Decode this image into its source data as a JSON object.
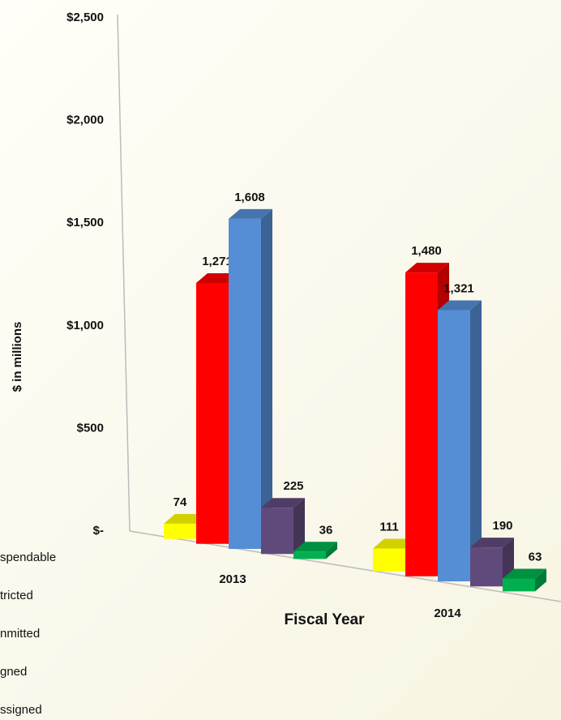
{
  "chart_data": {
    "type": "bar3d",
    "y_label": "$ in millions",
    "x_label": "Fiscal Year",
    "categories": [
      "2013",
      "2014"
    ],
    "series": [
      {
        "name": "spendable",
        "color": "#ffff00",
        "values": [
          74,
          111
        ]
      },
      {
        "name": "tricted",
        "color": "#ff0000",
        "values": [
          1271,
          1480
        ],
        "value_labels": [
          "1,271",
          "1,480"
        ]
      },
      {
        "name": "nmitted",
        "color": "#558ed5",
        "values": [
          1608,
          1321
        ],
        "value_labels": [
          "1,608",
          "1,321"
        ]
      },
      {
        "name": "gned",
        "color": "#604a7b",
        "values": [
          225,
          190
        ]
      },
      {
        "name": "ssigned",
        "color": "#00b050",
        "values": [
          36,
          63
        ]
      }
    ],
    "ylim": [
      0,
      2500
    ],
    "yticks": [
      {
        "value": 0,
        "label": "$-"
      },
      {
        "value": 500,
        "label": "$500"
      },
      {
        "value": 1000,
        "label": "$1,000"
      },
      {
        "value": 1500,
        "label": "$1,500"
      },
      {
        "value": 2000,
        "label": "$2,000"
      },
      {
        "value": 2500,
        "label": "$2,500"
      }
    ]
  }
}
